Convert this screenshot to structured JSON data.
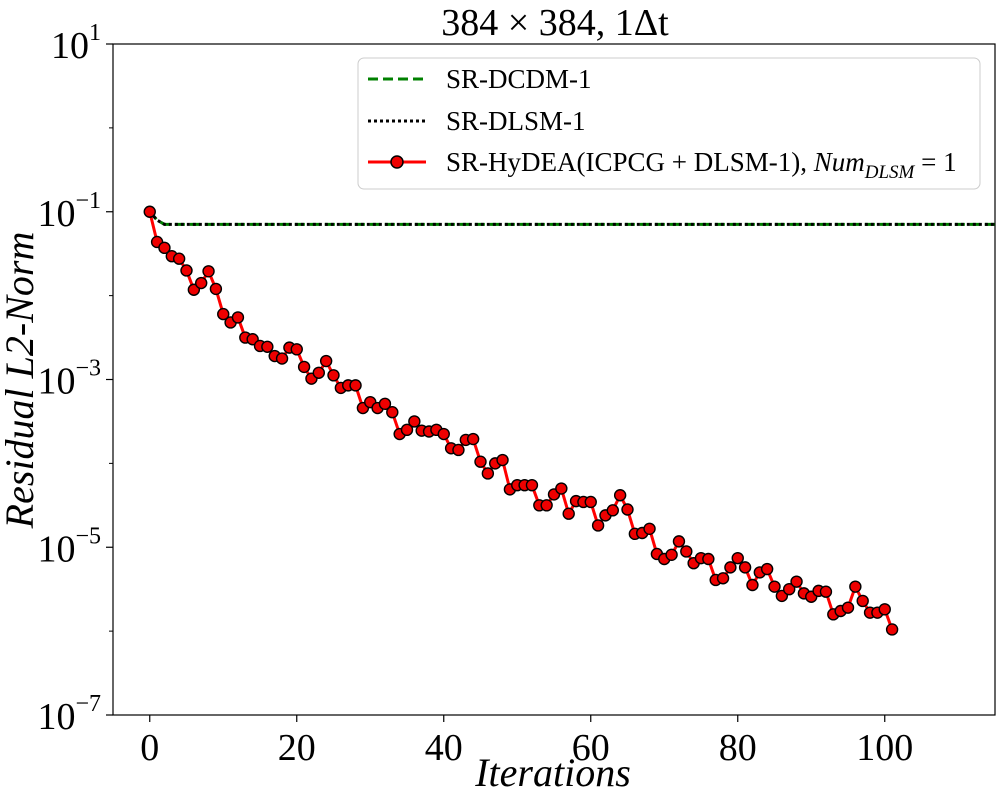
{
  "chart_data": {
    "type": "line",
    "title": "384 × 384, 1Δt",
    "xlabel": "Iterations",
    "ylabel": "Residual L2-Norm",
    "yscale": "log",
    "xlim": [
      -5,
      115
    ],
    "ylim_exp": [
      -7,
      1
    ],
    "xticks": [
      0,
      20,
      40,
      60,
      80,
      100
    ],
    "yticks": [
      {
        "base": "10",
        "exp": "1",
        "value": 1
      },
      {
        "base": "10",
        "exp": "−1",
        "value": -1
      },
      {
        "base": "10",
        "exp": "−3",
        "value": -3
      },
      {
        "base": "10",
        "exp": "−5",
        "value": -5
      },
      {
        "base": "10",
        "exp": "−7",
        "value": -7
      }
    ],
    "legend": {
      "position": "top-right",
      "entries": [
        {
          "label": "SR-DCDM-1",
          "style": "dashed",
          "color": "#008000"
        },
        {
          "label": "SR-DLSM-1",
          "style": "dotted",
          "color": "#000000"
        },
        {
          "label": "SR-HyDEA(ICPCG + DLSM-1), ",
          "math_base": "Num",
          "math_sub": "DLSM",
          "math_suffix": " = 1",
          "style": "solid-marker",
          "color": "#ff0000"
        }
      ]
    },
    "series": [
      {
        "name": "SR-DCDM-1",
        "color": "#008000",
        "style": "dashed",
        "x": [
          0,
          1,
          2,
          115
        ],
        "log10_y": [
          -1.0,
          -1.1,
          -1.15,
          -1.15
        ]
      },
      {
        "name": "SR-DLSM-1",
        "color": "#000000",
        "style": "dotted",
        "x": [
          0,
          1,
          2,
          115
        ],
        "log10_y": [
          -1.0,
          -1.1,
          -1.15,
          -1.15
        ]
      },
      {
        "name": "SR-HyDEA(ICPCG + DLSM-1), Num_DLSM = 1",
        "color": "#ff0000",
        "marker": "circle",
        "marker_face": "#ee0000",
        "x": [
          0,
          1,
          2,
          3,
          4,
          5,
          6,
          7,
          8,
          9,
          10,
          11,
          12,
          13,
          14,
          15,
          16,
          17,
          18,
          19,
          20,
          21,
          22,
          23,
          24,
          25,
          26,
          27,
          28,
          29,
          30,
          31,
          32,
          33,
          34,
          35,
          36,
          37,
          38,
          39,
          40,
          41,
          42,
          43,
          44,
          45,
          46,
          47,
          48,
          49,
          50,
          51,
          52,
          53,
          54,
          55,
          56,
          57,
          58,
          59,
          60,
          61,
          62,
          63,
          64,
          65,
          66,
          67,
          68,
          69,
          70,
          71,
          72,
          73,
          74,
          75,
          76,
          77,
          78,
          79,
          80,
          81,
          82,
          83,
          84,
          85,
          86,
          87,
          88,
          89,
          90,
          91,
          92,
          93,
          94,
          95,
          96,
          97,
          98,
          99,
          100,
          101
        ],
        "log10_y": [
          -1.0,
          -1.36,
          -1.43,
          -1.53,
          -1.56,
          -1.7,
          -1.93,
          -1.85,
          -1.71,
          -1.92,
          -2.22,
          -2.32,
          -2.26,
          -2.5,
          -2.52,
          -2.6,
          -2.61,
          -2.72,
          -2.75,
          -2.62,
          -2.64,
          -2.85,
          -2.99,
          -2.92,
          -2.78,
          -2.95,
          -3.1,
          -3.07,
          -3.07,
          -3.34,
          -3.27,
          -3.34,
          -3.29,
          -3.39,
          -3.65,
          -3.6,
          -3.5,
          -3.61,
          -3.62,
          -3.6,
          -3.65,
          -3.82,
          -3.84,
          -3.72,
          -3.71,
          -3.98,
          -4.12,
          -4.0,
          -3.96,
          -4.31,
          -4.26,
          -4.26,
          -4.26,
          -4.5,
          -4.5,
          -4.37,
          -4.3,
          -4.6,
          -4.45,
          -4.46,
          -4.46,
          -4.74,
          -4.62,
          -4.56,
          -4.38,
          -4.55,
          -4.84,
          -4.83,
          -4.78,
          -5.08,
          -5.14,
          -5.09,
          -4.93,
          -5.05,
          -5.19,
          -5.13,
          -5.14,
          -5.39,
          -5.37,
          -5.24,
          -5.13,
          -5.24,
          -5.45,
          -5.3,
          -5.26,
          -5.47,
          -5.58,
          -5.5,
          -5.41,
          -5.55,
          -5.59,
          -5.52,
          -5.53,
          -5.8,
          -5.76,
          -5.72,
          -5.47,
          -5.64,
          -5.78,
          -5.78,
          -5.74,
          -5.98
        ]
      }
    ]
  }
}
